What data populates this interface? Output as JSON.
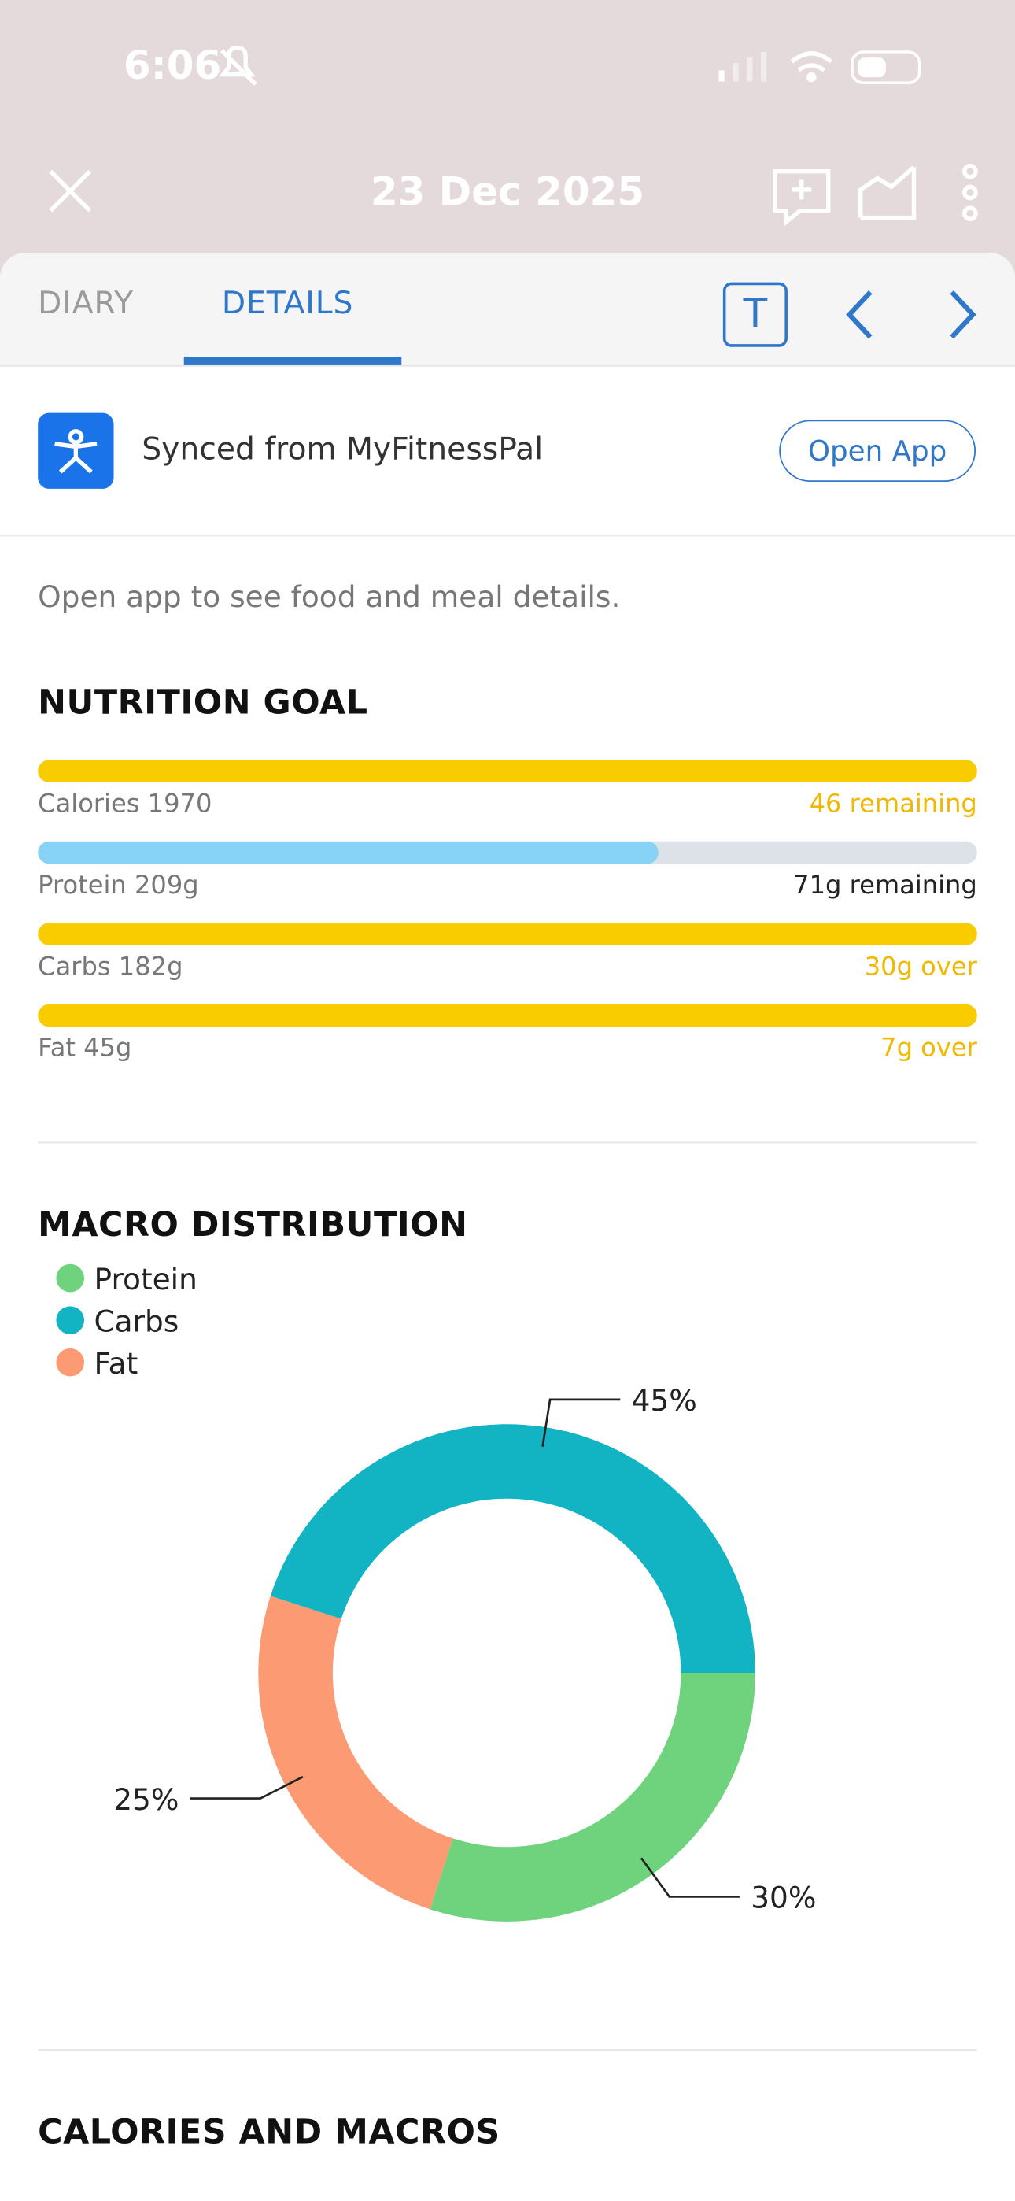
{
  "status_bar": {
    "time": "6:06"
  },
  "header": {
    "date": "23 Dec 2025"
  },
  "tabs": [
    "DIARY",
    "DETAILS"
  ],
  "toolbar": {
    "text_button": "T"
  },
  "sync": {
    "label": "Synced from MyFitnessPal",
    "button": "Open App"
  },
  "note": "Open app to see food and meal details.",
  "nutrition_goal": {
    "title": "NUTRITION GOAL",
    "rows": [
      {
        "label": "Calories 1970",
        "status": "46 remaining",
        "progress": 1,
        "color": "#f9cc00",
        "status_color": "#f0b800"
      },
      {
        "label": "Protein 209g",
        "status": "71g remaining",
        "progress": 0.66,
        "color": "#86d3f7",
        "status_color": "#222222"
      },
      {
        "label": "Carbs 182g",
        "status": "30g over",
        "progress": 1,
        "color": "#f9cc00",
        "status_color": "#f0b800"
      },
      {
        "label": "Fat 45g",
        "status": "7g over",
        "progress": 1,
        "color": "#f9cc00",
        "status_color": "#f0b800"
      }
    ]
  },
  "chart_data": {
    "type": "donut",
    "title": "MACRO DISTRIBUTION",
    "categories": [
      "Protein",
      "Carbs",
      "Fat"
    ],
    "values": [
      30,
      45,
      25
    ],
    "value_labels": [
      "30%",
      "45%",
      "25%"
    ],
    "colors": [
      "#6fd27d",
      "#12b3c3",
      "#fc9a74"
    ],
    "legend": "top-left"
  },
  "footer": {
    "title": "CALORIES AND MACROS"
  }
}
